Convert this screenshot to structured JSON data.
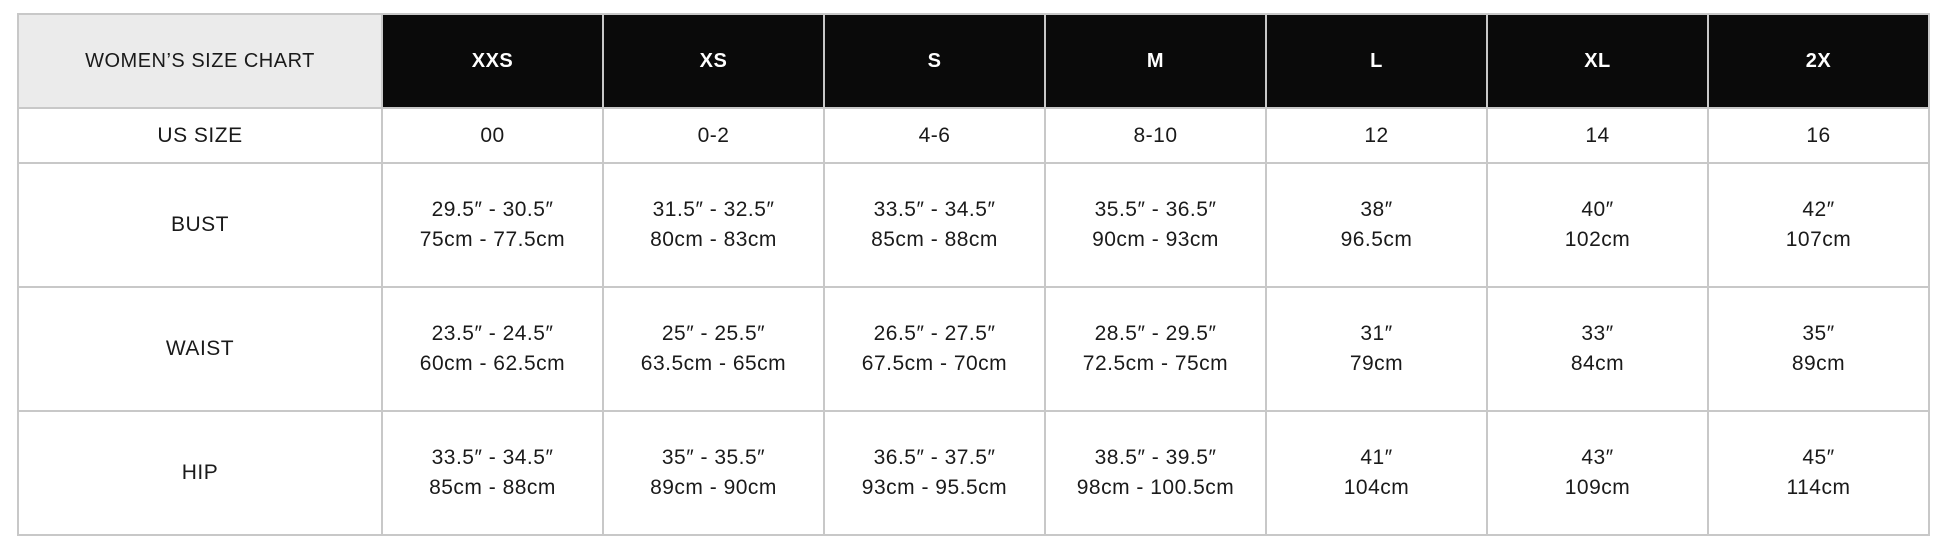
{
  "title": "WOMEN’S SIZE CHART",
  "sizes": [
    "XXS",
    "XS",
    "S",
    "M",
    "L",
    "XL",
    "2X"
  ],
  "rows": [
    {
      "label": "US SIZE",
      "cells": [
        [
          "00"
        ],
        [
          "0-2"
        ],
        [
          "4-6"
        ],
        [
          "8-10"
        ],
        [
          "12"
        ],
        [
          "14"
        ],
        [
          "16"
        ]
      ]
    },
    {
      "label": "BUST",
      "cells": [
        [
          "29.5″ - 30.5″",
          "75cm - 77.5cm"
        ],
        [
          "31.5″ - 32.5″",
          "80cm - 83cm"
        ],
        [
          "33.5″ - 34.5″",
          "85cm - 88cm"
        ],
        [
          "35.5″ - 36.5″",
          "90cm - 93cm"
        ],
        [
          "38″",
          "96.5cm"
        ],
        [
          "40″",
          "102cm"
        ],
        [
          "42″",
          "107cm"
        ]
      ]
    },
    {
      "label": "WAIST",
      "cells": [
        [
          "23.5″ - 24.5″",
          "60cm - 62.5cm"
        ],
        [
          "25″ - 25.5″",
          "63.5cm - 65cm"
        ],
        [
          "26.5″ - 27.5″",
          "67.5cm - 70cm"
        ],
        [
          "28.5″ - 29.5″",
          "72.5cm - 75cm"
        ],
        [
          "31″",
          "79cm"
        ],
        [
          "33″",
          "84cm"
        ],
        [
          "35″",
          "89cm"
        ]
      ]
    },
    {
      "label": "HIP",
      "cells": [
        [
          "33.5″ - 34.5″",
          "85cm - 88cm"
        ],
        [
          "35″ - 35.5″",
          "89cm - 90cm"
        ],
        [
          "36.5″ - 37.5″",
          "93cm - 95.5cm"
        ],
        [
          "38.5″ - 39.5″",
          "98cm - 100.5cm"
        ],
        [
          "41″",
          "104cm"
        ],
        [
          "43″",
          "109cm"
        ],
        [
          "45″",
          "114cm"
        ]
      ]
    }
  ],
  "colors": {
    "header_bg": "#0a0a0a",
    "corner_bg": "#ebebeb",
    "border": "#c8c8c8"
  }
}
